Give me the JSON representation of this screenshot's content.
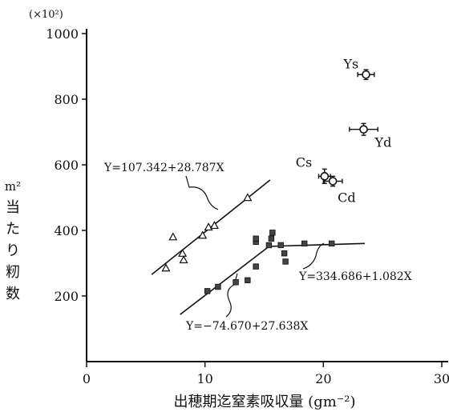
{
  "chart_data": {
    "type": "scatter",
    "scale_label": "(×10²)",
    "xlabel": "出穂期迄窒素吸収量 (gm⁻²)",
    "ylabel_parts": [
      "m²",
      "当",
      "た",
      "り",
      "籾",
      "数"
    ],
    "xlim": [
      0,
      30
    ],
    "ylim": [
      0,
      1000
    ],
    "x_ticks": [
      0,
      10,
      20,
      30
    ],
    "y_ticks": [
      200,
      400,
      600,
      800,
      1000
    ],
    "grid": false,
    "series": [
      {
        "marker": "triangle",
        "points": [
          [
            6.7,
            285
          ],
          [
            7.3,
            380
          ],
          [
            8.1,
            330
          ],
          [
            8.2,
            310
          ],
          [
            9.8,
            385
          ],
          [
            10.3,
            410
          ],
          [
            10.8,
            415
          ],
          [
            13.6,
            500
          ]
        ]
      },
      {
        "marker": "square",
        "points": [
          [
            10.2,
            215
          ],
          [
            11.1,
            228
          ],
          [
            12.6,
            242
          ],
          [
            13.6,
            248
          ],
          [
            14.3,
            290
          ],
          [
            14.3,
            365
          ],
          [
            14.3,
            375
          ],
          [
            15.4,
            355
          ],
          [
            15.6,
            375
          ],
          [
            15.7,
            393
          ],
          [
            16.4,
            355
          ],
          [
            16.7,
            330
          ],
          [
            16.8,
            305
          ],
          [
            18.4,
            360
          ],
          [
            20.7,
            360
          ]
        ]
      },
      {
        "marker": "circle",
        "points": [
          {
            "label": "Ys",
            "x": 23.6,
            "y": 875,
            "xerr": 0.7,
            "yerr": 15
          },
          {
            "label": "Yd",
            "x": 23.4,
            "y": 708,
            "xerr": 1.2,
            "yerr": 18
          },
          {
            "label": "Cs",
            "x": 20.1,
            "y": 565,
            "xerr": 0.5,
            "yerr": 22
          },
          {
            "label": "Cd",
            "x": 20.8,
            "y": 550,
            "xerr": 0.8,
            "yerr": 15
          }
        ]
      }
    ],
    "regressions": [
      {
        "equation": "Y=107.342+28.787X",
        "x_range": [
          5.5,
          15.5
        ],
        "intercept": 107.342,
        "slope": 28.787
      },
      {
        "equation": "Y=-74.670+27.638X",
        "x_range": [
          7.9,
          15.3
        ],
        "intercept": -74.67,
        "slope": 27.638
      },
      {
        "equation": "Y=334.686+1.082X",
        "x_range": [
          15.3,
          23.5
        ],
        "intercept": 334.686,
        "slope": 1.082
      }
    ],
    "equation_labels": [
      "Y=107.342+28.787X",
      "Y=−74.670+27.638X",
      "Y=334.686+1.082X"
    ]
  }
}
